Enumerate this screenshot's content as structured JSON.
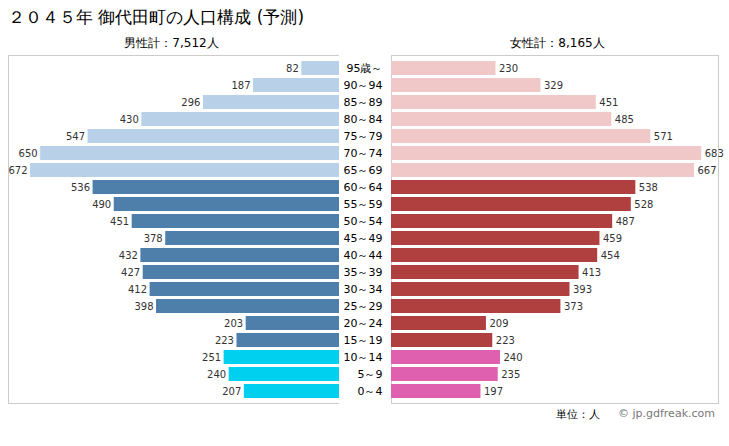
{
  "chart_data": {
    "type": "bar",
    "orientation": "horizontal",
    "title": "２０４５年 御代田町の人口構成 (予測)",
    "categories": [
      "95歳～",
      "90～94",
      "85～89",
      "80～84",
      "75～79",
      "70～74",
      "65～69",
      "60～64",
      "55～59",
      "50～54",
      "45～49",
      "40～44",
      "35～39",
      "30～34",
      "25～29",
      "20～24",
      "15～19",
      "10～14",
      "5～9",
      "0～4"
    ],
    "series": [
      {
        "name": "男性計：7,512人",
        "values": [
          82,
          187,
          296,
          430,
          547,
          650,
          672,
          536,
          490,
          451,
          378,
          432,
          427,
          412,
          398,
          203,
          223,
          251,
          240,
          207
        ],
        "colors": [
          "#b8d0e8",
          "#b8d0e8",
          "#b8d0e8",
          "#b8d0e8",
          "#b8d0e8",
          "#b8d0e8",
          "#b8d0e8",
          "#4e7faa",
          "#4e7faa",
          "#4e7faa",
          "#4e7faa",
          "#4e7faa",
          "#4e7faa",
          "#4e7faa",
          "#4e7faa",
          "#4e7faa",
          "#4e7faa",
          "#00d0f0",
          "#00d0f0",
          "#00d0f0"
        ]
      },
      {
        "name": "女性計：8,165人",
        "values": [
          230,
          329,
          451,
          485,
          571,
          683,
          667,
          538,
          528,
          487,
          459,
          454,
          413,
          393,
          373,
          209,
          223,
          240,
          235,
          197
        ],
        "colors": [
          "#f0c8c8",
          "#f0c8c8",
          "#f0c8c8",
          "#f0c8c8",
          "#f0c8c8",
          "#f0c8c8",
          "#f0c8c8",
          "#b04040",
          "#b04040",
          "#b04040",
          "#b04040",
          "#b04040",
          "#b04040",
          "#b04040",
          "#b04040",
          "#b04040",
          "#b04040",
          "#e060b0",
          "#e060b0",
          "#e060b0"
        ]
      }
    ],
    "xlim": [
      0,
      720
    ],
    "data_labels": true,
    "tick_labels": "y",
    "grid": false,
    "annotations": [
      "単位：人",
      "© jp.gdfreak.com"
    ]
  }
}
